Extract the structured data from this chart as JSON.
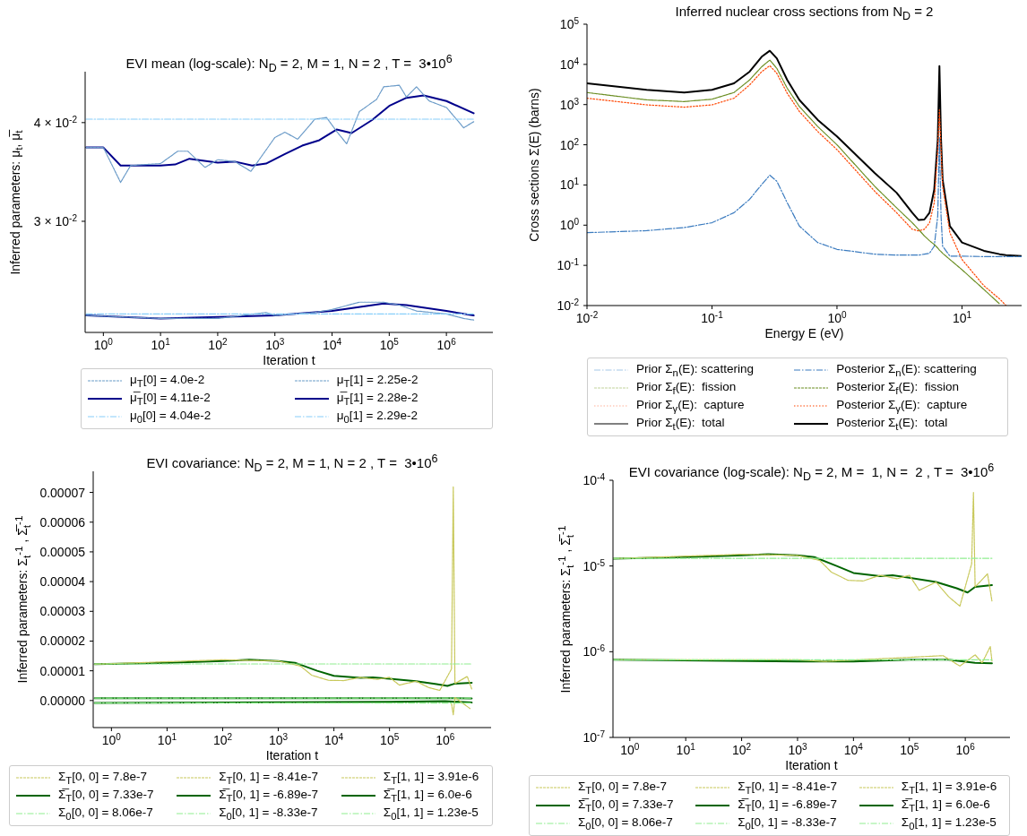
{
  "chart_data": [
    {
      "type": "line",
      "title": "EVI mean (log-scale): N$_{D}$ = 2, M = 1, N = 2 , T =  3•10$^{6}$",
      "xlabel": "Iteration t",
      "ylabel": "Inferred parameters: μ$_{t}$, μ̅$_{t}$",
      "log": "xy",
      "xlim": [
        0.48,
        6500000
      ],
      "xticks": [
        {
          "value": 1,
          "label": "10$^{0}$"
        },
        {
          "value": 10,
          "label": "10$^{1}$"
        },
        {
          "value": 100,
          "label": "10$^{2}$"
        },
        {
          "value": 1000,
          "label": "10$^{3}$"
        },
        {
          "value": 10000,
          "label": "10$^{4}$"
        },
        {
          "value": 100000,
          "label": "10$^{5}$"
        },
        {
          "value": 1000000,
          "label": "10$^{6}$"
        }
      ],
      "ylim": [
        0.0217,
        0.0464
      ],
      "yticks": [
        {
          "value": 0.03,
          "label": "3 × 10$^{-2}$"
        },
        {
          "value": 0.04,
          "label": "4 × 10$^{-2}$"
        }
      ],
      "legend": "bottom",
      "series": [
        {
          "name": "μ$_{T}$[0] = 4.0e-2",
          "color": "#6b9bc8",
          "line_style": "dashed",
          "x": [
            0.5,
            1,
            2,
            3,
            10,
            20,
            30,
            60,
            100,
            200,
            380,
            1000,
            1500,
            2500,
            5000,
            8000,
            12000,
            18000,
            30000,
            60000,
            80000,
            150000,
            200000,
            300000,
            500000,
            1000000,
            1500000,
            2000000,
            3000000
          ],
          "values": [
            0.0372,
            0.0372,
            0.0336,
            0.0353,
            0.0355,
            0.0368,
            0.0368,
            0.0351,
            0.0359,
            0.0357,
            0.0347,
            0.0383,
            0.0389,
            0.0381,
            0.0404,
            0.0406,
            0.039,
            0.0376,
            0.0413,
            0.0428,
            0.0444,
            0.0446,
            0.0431,
            0.0444,
            0.0426,
            0.0418,
            0.0404,
            0.0394,
            0.0401
          ]
        },
        {
          "name": "μ̅$_{T}$[0] = 4.11e-2",
          "color": "#00008b",
          "line_style": "solid",
          "x": [
            0.5,
            1,
            2,
            4,
            10,
            18,
            32,
            100,
            200,
            400,
            700,
            1500,
            3000,
            6000,
            12000,
            22000,
            50000,
            100000,
            200000,
            400000,
            1000000,
            3000000
          ],
          "values": [
            0.0372,
            0.0372,
            0.0353,
            0.0353,
            0.0353,
            0.0354,
            0.036,
            0.0356,
            0.0357,
            0.0353,
            0.0355,
            0.0365,
            0.0374,
            0.038,
            0.0392,
            0.0388,
            0.0403,
            0.042,
            0.043,
            0.0433,
            0.0426,
            0.0411
          ]
        },
        {
          "name": "μ$_{0}$[0] = 4.04e-2",
          "color": "#87cefa",
          "line_style": "dashdot",
          "x": [
            0.5,
            3000000
          ],
          "values": [
            0.0404,
            0.0404
          ]
        },
        {
          "name": "μ$_{T}$[1] = 2.25e-2",
          "color": "#6b9bc8",
          "line_style": "dashed",
          "x": [
            0.5,
            10,
            100,
            700,
            1000,
            5000,
            10000,
            30000,
            80000,
            150000,
            300000,
            1000000,
            2000000,
            3000000
          ],
          "values": [
            0.0228,
            0.0226,
            0.0226,
            0.023,
            0.0228,
            0.023,
            0.0232,
            0.0237,
            0.0237,
            0.0235,
            0.0231,
            0.0229,
            0.0226,
            0.0225
          ]
        },
        {
          "name": "μ̅$_{T}$[1] = 2.28e-2",
          "color": "#00008b",
          "line_style": "solid",
          "x": [
            0.5,
            10,
            100,
            1000,
            10000,
            80000,
            200000,
            1000000,
            3000000
          ],
          "values": [
            0.0228,
            0.0226,
            0.0227,
            0.0228,
            0.0231,
            0.0236,
            0.0235,
            0.0231,
            0.0228
          ]
        },
        {
          "name": "μ$_{0}$[1] = 2.29e-2",
          "color": "#87cefa",
          "line_style": "dashdot",
          "x": [
            0.5,
            3000000
          ],
          "values": [
            0.0229,
            0.0229
          ]
        }
      ]
    },
    {
      "type": "line",
      "title": "Inferred nuclear cross sections from N$_{D}$ = 2",
      "xlabel": "Energy E (eV)",
      "ylabel": "Cross sections Σ(E) (barns)",
      "log": "xy",
      "xlim": [
        0.01,
        30
      ],
      "xticks": [
        {
          "value": 0.01,
          "label": "10$^{-2}$"
        },
        {
          "value": 0.1,
          "label": "10$^{-1}$"
        },
        {
          "value": 1,
          "label": "10$^{0}$"
        },
        {
          "value": 10,
          "label": "10$^{1}$"
        }
      ],
      "ylim": [
        0.01,
        100000
      ],
      "yticks": [
        {
          "value": 0.01,
          "label": "10$^{-2}$"
        },
        {
          "value": 0.1,
          "label": "10$^{-1}$"
        },
        {
          "value": 1,
          "label": "10$^{0}$"
        },
        {
          "value": 10,
          "label": "10$^{1}$"
        },
        {
          "value": 100,
          "label": "10$^{2}$"
        },
        {
          "value": 1000,
          "label": "10$^{3}$"
        },
        {
          "value": 10000,
          "label": "10$^{4}$"
        },
        {
          "value": 100000,
          "label": "10$^{5}$"
        }
      ],
      "legend": "bottom",
      "series": [
        {
          "name": "Prior Σ$_{n}$(E): scattering",
          "color": "#a6c8e8",
          "line_style": "dashdot"
        },
        {
          "name": "Prior Σ$_{f}$(E):  fission",
          "color": "#c2d39b",
          "line_style": "dashed"
        },
        {
          "name": "Prior Σ$_{γ}$(E):  capture",
          "color": "#ffb199",
          "line_style": "dotted"
        },
        {
          "name": "Prior Σ$_{t}$(E):  total",
          "color": "#808080",
          "line_style": "solid"
        },
        {
          "name": "Posterior Σ$_{n}$(E): scattering",
          "color": "#3b7bbf",
          "line_style": "dashdot",
          "x": [
            0.01,
            0.03,
            0.06,
            0.1,
            0.15,
            0.2,
            0.25,
            0.29,
            0.33,
            0.4,
            0.5,
            0.7,
            1,
            2,
            3,
            4,
            4.5,
            5,
            5.5,
            6,
            6.4,
            6.6,
            6.8,
            7,
            8,
            10,
            15,
            20,
            22.5,
            30
          ],
          "values": [
            0.65,
            0.73,
            0.87,
            1.15,
            2.04,
            4.4,
            10.3,
            17.5,
            12.4,
            3.6,
            0.95,
            0.37,
            0.25,
            0.19,
            0.18,
            0.18,
            0.18,
            0.19,
            0.2,
            0.3,
            1.7,
            150,
            1.7,
            0.3,
            0.17,
            0.17,
            0.165,
            0.165,
            0.165,
            0.165
          ]
        },
        {
          "name": "Posterior Σ$_{f}$(E):  fission",
          "color": "#6b8e23",
          "line_style": "dashed",
          "x": [
            0.01,
            0.03,
            0.06,
            0.1,
            0.15,
            0.2,
            0.25,
            0.29,
            0.33,
            0.4,
            0.5,
            0.7,
            1,
            2,
            3,
            4,
            4.5,
            5,
            5.5,
            6,
            6.4,
            6.6,
            6.8,
            7,
            8,
            10,
            15,
            20
          ],
          "values": [
            1995,
            1310,
            1190,
            1360,
            1995,
            4100,
            8770,
            12800,
            7980,
            2550,
            895,
            286,
            100,
            9.3,
            2.7,
            1.15,
            0.78,
            0.54,
            0.41,
            0.33,
            0.27,
            0.24,
            0.22,
            0.2,
            0.14,
            0.078,
            0.025,
            0.011
          ]
        },
        {
          "name": "Posterior Σ$_{γ}$(E):  capture",
          "color": "#ff4500",
          "line_style": "dotted",
          "x": [
            0.01,
            0.03,
            0.06,
            0.1,
            0.15,
            0.2,
            0.25,
            0.29,
            0.33,
            0.4,
            0.5,
            0.7,
            1,
            2,
            3,
            4,
            4.5,
            5,
            5.5,
            6,
            6.4,
            6.6,
            6.8,
            7,
            8,
            10,
            15,
            20,
            22.5
          ],
          "values": [
            1440,
            985,
            863,
            985,
            1440,
            3080,
            6590,
            9290,
            6000,
            1910,
            673,
            215,
            75.7,
            7,
            2.04,
            0.79,
            0.72,
            0.79,
            1.15,
            3.6,
            75,
            740,
            75,
            9.3,
            0.65,
            0.14,
            0.031,
            0.0146,
            0.01
          ]
        },
        {
          "name": "Posterior Σ$_{t}$(E):  total",
          "color": "#000000",
          "line_style": "solid",
          "x": [
            0.01,
            0.03,
            0.06,
            0.1,
            0.15,
            0.2,
            0.25,
            0.29,
            0.33,
            0.4,
            0.5,
            0.7,
            1,
            2,
            3,
            4,
            4.5,
            5,
            5.5,
            6,
            6.4,
            6.6,
            6.8,
            7,
            8,
            10,
            15,
            20,
            22.5,
            30
          ],
          "values": [
            3390,
            2320,
            1995,
            2320,
            3390,
            6590,
            15500,
            21800,
            14100,
            4100,
            1310,
            419,
            162,
            20,
            6.4,
            2.04,
            1.34,
            1.38,
            2.04,
            7.7,
            133,
            9100,
            133,
            13.7,
            0.95,
            0.37,
            0.23,
            0.19,
            0.18,
            0.17
          ]
        }
      ]
    },
    {
      "type": "line",
      "title": "EVI covariance: N$_{D}$ = 2, M = 1, N = 2 , T =  3•10$^{6}$",
      "xlabel": "Iteration t",
      "ylabel": "Inferred parameters: Σ$_{t}$$^{-1}$ , Σ̅$_{t}$$^{-1}$",
      "log": "x",
      "xlim": [
        0.47,
        6700000
      ],
      "xticks": [
        {
          "value": 1,
          "label": "10$^{0}$"
        },
        {
          "value": 10,
          "label": "10$^{1}$"
        },
        {
          "value": 100,
          "label": "10$^{2}$"
        },
        {
          "value": 1000,
          "label": "10$^{3}$"
        },
        {
          "value": 10000,
          "label": "10$^{4}$"
        },
        {
          "value": 100000,
          "label": "10$^{5}$"
        },
        {
          "value": 1000000,
          "label": "10$^{6}$"
        }
      ],
      "ylim": [
        -9.1e-06,
        7.71e-05
      ],
      "yticks": [
        {
          "value": 0,
          "label": "0.00000"
        },
        {
          "value": 1e-05,
          "label": "0.00001"
        },
        {
          "value": 2e-05,
          "label": "0.00002"
        },
        {
          "value": 3e-05,
          "label": "0.00003"
        },
        {
          "value": 4e-05,
          "label": "0.00004"
        },
        {
          "value": 5e-05,
          "label": "0.00005"
        },
        {
          "value": 6e-05,
          "label": "0.00006"
        },
        {
          "value": 7e-05,
          "label": "0.00007"
        }
      ],
      "legend": "bottom",
      "series": [
        {
          "name": "Σ$_{T}$[0, 0] = 7.8e-7",
          "color": "#c8c85a",
          "line_style": "dashed"
        },
        {
          "name": "Σ̅$_{T}$[0, 0] = 7.33e-7",
          "color": "#006400",
          "line_style": "solid",
          "x": [
            0.5,
            1000,
            10000,
            100000,
            500000,
            1500000,
            3000000
          ],
          "values": [
            8.06e-07,
            7.7e-07,
            7.7e-07,
            8.06e-07,
            8.06e-07,
            7.4e-07,
            7.33e-07
          ]
        },
        {
          "name": "Σ$_{0}$[0, 0] = 8.06e-7",
          "color": "#90ee90",
          "line_style": "dashdot",
          "x": [
            0.5,
            3000000
          ],
          "values": [
            8.06e-07,
            8.06e-07
          ]
        },
        {
          "name": "Σ$_{T}$[0, 1] = -8.41e-7",
          "color": "#c8c85a",
          "line_style": "dashed",
          "x": [
            1300000,
            1400000,
            1500000,
            2800000
          ],
          "values": [
            -1e-06,
            -4.8e-06,
            1e-06,
            -2.7e-06
          ]
        },
        {
          "name": "Σ̅$_{T}$[0, 1] = -6.89e-7",
          "color": "#006400",
          "line_style": "solid",
          "x": [
            0.5,
            1000,
            100000,
            1000000,
            3000000
          ],
          "values": [
            -8.33e-07,
            -6e-07,
            -4e-07,
            -2e-07,
            -6.89e-07
          ]
        },
        {
          "name": "Σ$_{0}$[0, 1] = -8.33e-7",
          "color": "#90ee90",
          "line_style": "dashdot",
          "x": [
            0.5,
            3000000
          ],
          "values": [
            -8.33e-07,
            -8.33e-07
          ]
        },
        {
          "name": "Σ$_{T}$[1, 1] = 3.91e-6",
          "color": "#c8c85a",
          "line_style": "dashed",
          "x": [
            0.5,
            100,
            1000,
            2500,
            4000,
            8000,
            15000,
            30000,
            60000,
            100000,
            150000,
            300000,
            500000,
            800000,
            1300000,
            1400000,
            1500000,
            2500000,
            3000000
          ],
          "values": [
            1.22e-05,
            1.37e-05,
            1.33e-05,
            1.16e-05,
            8.5e-06,
            6.8e-06,
            6.7e-06,
            7.8e-06,
            7.1e-06,
            7.8e-06,
            5.2e-06,
            6.5e-06,
            4.4e-06,
            3.4e-06,
            1.06e-05,
            7.2e-05,
            5.7e-06,
            8.1e-06,
            3.91e-06
          ]
        },
        {
          "name": "Σ̅$_{T}$[1, 1] = 6.0e-6",
          "color": "#006400",
          "line_style": "solid",
          "x": [
            0.5,
            10,
            100,
            300,
            1000,
            2000,
            5000,
            10000,
            30000,
            50000,
            100000,
            300000,
            700000,
            1100000,
            1500000,
            3000000
          ],
          "values": [
            1.22e-05,
            1.27e-05,
            1.33e-05,
            1.37e-05,
            1.33e-05,
            1.27e-05,
            1e-05,
            8.3e-06,
            7.6e-06,
            7.8e-06,
            7.3e-06,
            6.5e-06,
            5.5e-06,
            4.9e-06,
            5.7e-06,
            6e-06
          ]
        },
        {
          "name": "Σ$_{0}$[1, 1] = 1.23e-5",
          "color": "#90ee90",
          "line_style": "dashdot",
          "x": [
            0.5,
            3000000
          ],
          "values": [
            1.23e-05,
            1.23e-05
          ]
        }
      ]
    },
    {
      "type": "line",
      "title": "EVI covariance (log-scale): N$_{D}$ = 2, M =  1, N =  2 , T =  3•10$^{6}$",
      "xlabel": "Iteration t",
      "ylabel": "Inferred parameters: Σ$_{t}$$^{-1}$ , Σ̅$_{t}$$^{-1}$",
      "log": "xy",
      "xlim": [
        0.5,
        6300000
      ],
      "xticks": [
        {
          "value": 1,
          "label": "10$^{0}$"
        },
        {
          "value": 10,
          "label": "10$^{1}$"
        },
        {
          "value": 100,
          "label": "10$^{2}$"
        },
        {
          "value": 1000,
          "label": "10$^{3}$"
        },
        {
          "value": 10000,
          "label": "10$^{4}$"
        },
        {
          "value": 100000,
          "label": "10$^{5}$"
        },
        {
          "value": 1000000,
          "label": "10$^{6}$"
        }
      ],
      "ylim": [
        1e-07,
        0.0001
      ],
      "yticks": [
        {
          "value": 1e-07,
          "label": "10$^{-7}$"
        },
        {
          "value": 1e-06,
          "label": "10$^{-6}$"
        },
        {
          "value": 1e-05,
          "label": "10$^{-5}$"
        },
        {
          "value": 0.0001,
          "label": "10$^{-4}$"
        }
      ],
      "legend": "bottom",
      "series": [
        {
          "name": "Σ$_{T}$[0, 0] = 7.8e-7",
          "color": "#c8c85a",
          "line_style": "dashed",
          "x": [
            0.5,
            1000,
            3000,
            100000,
            400000,
            800000,
            1500000,
            2000000,
            2800000,
            3000000
          ],
          "values": [
            8.06e-07,
            8.06e-07,
            7.7e-07,
            8.6e-07,
            9e-07,
            6.8e-07,
            9.2e-07,
            7.4e-07,
            1.15e-06,
            7.8e-07
          ]
        },
        {
          "name": "Σ̅$_{T}$[0, 0] = 7.33e-7",
          "color": "#006400",
          "line_style": "solid",
          "x": [
            0.5,
            1000,
            10000,
            100000,
            500000,
            1500000,
            3000000
          ],
          "values": [
            8.06e-07,
            7.7e-07,
            7.7e-07,
            8.06e-07,
            8.06e-07,
            7.4e-07,
            7.33e-07
          ]
        },
        {
          "name": "Σ$_{0}$[0, 0] = 8.06e-7",
          "color": "#90ee90",
          "line_style": "dashdot",
          "x": [
            0.5,
            3000000
          ],
          "values": [
            8.06e-07,
            8.06e-07
          ]
        },
        {
          "name": "Σ$_{T}$[0, 1] = -8.41e-7",
          "color": "#c8c85a",
          "line_style": "dashed"
        },
        {
          "name": "Σ̅$_{T}$[0, 1] = -6.89e-7",
          "color": "#006400",
          "line_style": "solid"
        },
        {
          "name": "Σ$_{0}$[0, 1] = -8.33e-7",
          "color": "#90ee90",
          "line_style": "dashdot"
        },
        {
          "name": "Σ$_{T}$[1, 1] = 3.91e-6",
          "color": "#c8c85a",
          "line_style": "dashed",
          "x": [
            0.5,
            100,
            1000,
            2500,
            4000,
            8000,
            15000,
            30000,
            60000,
            100000,
            150000,
            300000,
            500000,
            800000,
            1300000,
            1400000,
            1500000,
            2500000,
            3000000
          ],
          "values": [
            1.22e-05,
            1.37e-05,
            1.33e-05,
            1.16e-05,
            8.5e-06,
            6.8e-06,
            6.7e-06,
            7.8e-06,
            7.1e-06,
            7.8e-06,
            5.2e-06,
            6.5e-06,
            4.4e-06,
            3.4e-06,
            1.06e-05,
            7.2e-05,
            5.7e-06,
            8.1e-06,
            3.91e-06
          ]
        },
        {
          "name": "Σ̅$_{T}$[1, 1] = 6.0e-6",
          "color": "#006400",
          "line_style": "solid",
          "x": [
            0.5,
            10,
            100,
            300,
            1000,
            2000,
            5000,
            10000,
            30000,
            50000,
            100000,
            300000,
            700000,
            1100000,
            1500000,
            3000000
          ],
          "values": [
            1.22e-05,
            1.27e-05,
            1.33e-05,
            1.37e-05,
            1.33e-05,
            1.27e-05,
            1e-05,
            8.3e-06,
            7.6e-06,
            7.8e-06,
            7.3e-06,
            6.5e-06,
            5.5e-06,
            4.9e-06,
            5.7e-06,
            6e-06
          ]
        },
        {
          "name": "Σ$_{0}$[1, 1] = 1.23e-5",
          "color": "#90ee90",
          "line_style": "dashdot",
          "x": [
            0.5,
            3000000
          ],
          "values": [
            1.23e-05,
            1.23e-05
          ]
        }
      ]
    }
  ]
}
